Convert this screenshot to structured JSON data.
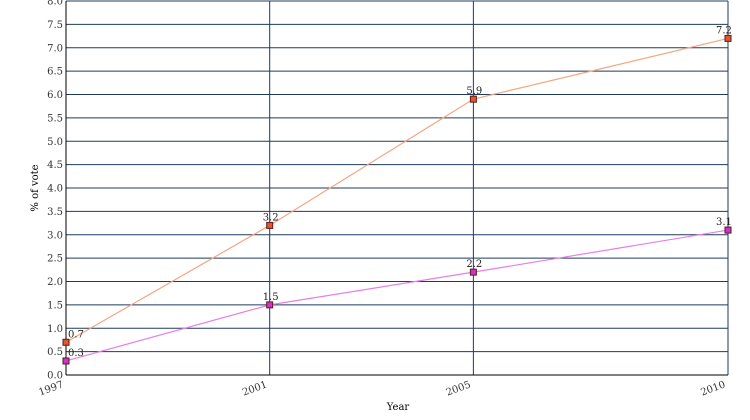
{
  "chart_data": {
    "type": "line",
    "title": "",
    "xlabel": "Year",
    "ylabel": "% of vote",
    "x": [
      "1997",
      "2001",
      "2005",
      "2010"
    ],
    "ylim": [
      0,
      8
    ],
    "yticks": [
      "0.0",
      "0.5",
      "1.0",
      "1.5",
      "2.0",
      "2.5",
      "3.0",
      "3.5",
      "4.0",
      "4.5",
      "5.0",
      "5.5",
      "6.0",
      "6.5",
      "7.0",
      "7.5",
      "8.0"
    ],
    "grid": true,
    "series": [
      {
        "values": [
          0.7,
          3.2,
          5.9,
          7.2
        ],
        "labels": [
          "0.7",
          "3.2",
          "5.9",
          "7.2"
        ],
        "color": "#f4a582",
        "marker_color": "#e2572e"
      },
      {
        "values": [
          0.3,
          1.5,
          2.2,
          3.1
        ],
        "labels": [
          "0.3",
          "1.5",
          "2.2",
          "3.1"
        ],
        "color": "#e87ee8",
        "marker_color": "#cc33cc"
      }
    ]
  }
}
